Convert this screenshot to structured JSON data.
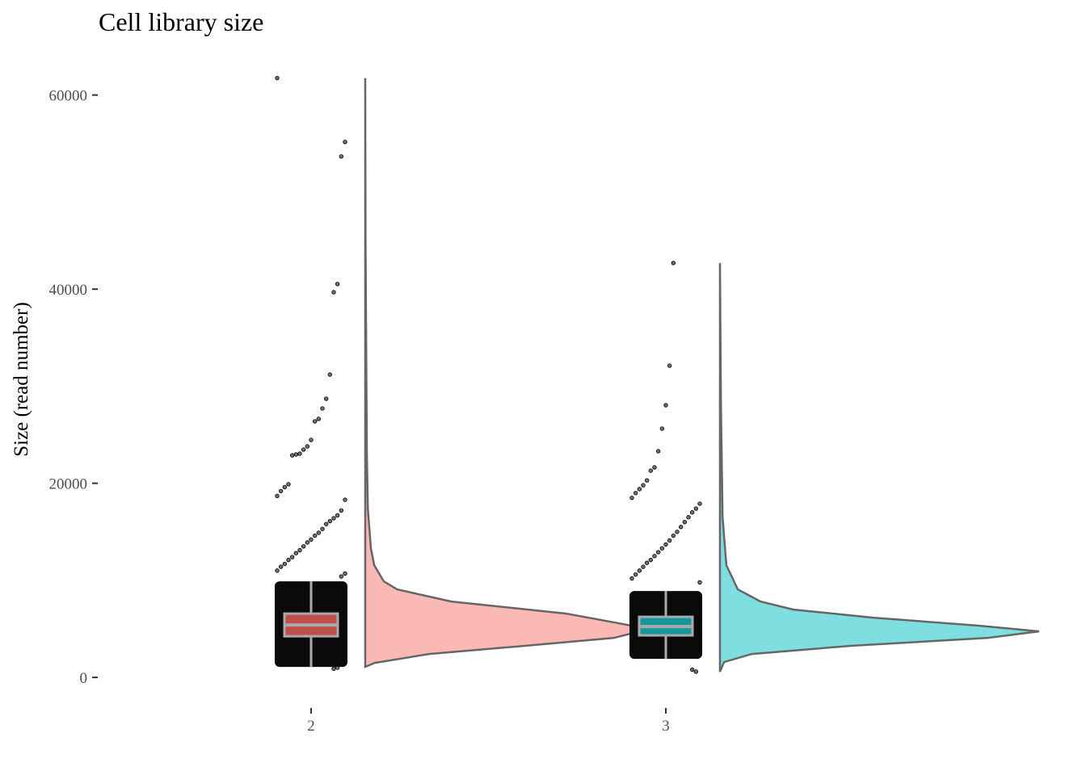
{
  "chart_data": {
    "type": "raincloud",
    "title": "Cell library size",
    "ylabel": "Size (read number)",
    "categories": [
      "2",
      "3"
    ],
    "ylim": [
      -3400,
      64800
    ],
    "yticks": [
      0,
      20000,
      40000,
      60000
    ],
    "groups": [
      {
        "name": "2",
        "box_color": "#c0504d",
        "density_color": "#fab9b5",
        "whisker_low": 1080,
        "q1": 4240,
        "median": 5410,
        "q3": 6570,
        "whisker_high": 9900,
        "points": [
          61750,
          55170,
          53670,
          40530,
          39690,
          31200,
          28710,
          27710,
          26630,
          26380,
          24470,
          23800,
          23470,
          23050,
          22970,
          22880,
          19900,
          19600,
          19200,
          18700,
          18300,
          17200,
          16700,
          16400,
          16100,
          15800,
          15300,
          14900,
          14600,
          14200,
          13900,
          13500,
          13100,
          12800,
          12400,
          12100,
          11700,
          11400,
          11000,
          10700,
          10400,
          1000,
          900
        ],
        "density_y": [
          1080,
          1500,
          2410,
          3250,
          4080,
          5000,
          6570,
          7820,
          9070,
          9900,
          11570,
          13230,
          17390,
          23220,
          44850,
          61750
        ],
        "density": [
          0,
          0.03,
          0.2,
          0.5,
          0.78,
          0.89,
          0.63,
          0.27,
          0.1,
          0.058,
          0.028,
          0.018,
          0.008,
          0.005,
          0.001,
          0
        ]
      },
      {
        "name": "3",
        "box_color": "#16979b",
        "density_color": "#7fdfe0",
        "whisker_low": 1910,
        "q1": 4330,
        "median": 5240,
        "q3": 6240,
        "whisker_high": 8900,
        "points": [
          42690,
          32120,
          28040,
          25630,
          23300,
          21640,
          21300,
          20300,
          19800,
          19400,
          19000,
          18500,
          17900,
          17400,
          17000,
          16500,
          16000,
          15500,
          15000,
          14600,
          14100,
          13700,
          13300,
          12900,
          12500,
          12100,
          11800,
          11400,
          11000,
          10600,
          10200,
          9800,
          600,
          800
        ],
        "density_y": [
          580,
          1580,
          2410,
          3250,
          4080,
          4740,
          5330,
          6160,
          6990,
          7820,
          9070,
          10320,
          11570,
          16560,
          28210,
          42690
        ],
        "density": [
          0,
          0.013,
          0.1,
          0.41,
          0.84,
          1,
          0.81,
          0.48,
          0.23,
          0.127,
          0.056,
          0.038,
          0.02,
          0.008,
          0.003,
          0
        ]
      }
    ]
  }
}
